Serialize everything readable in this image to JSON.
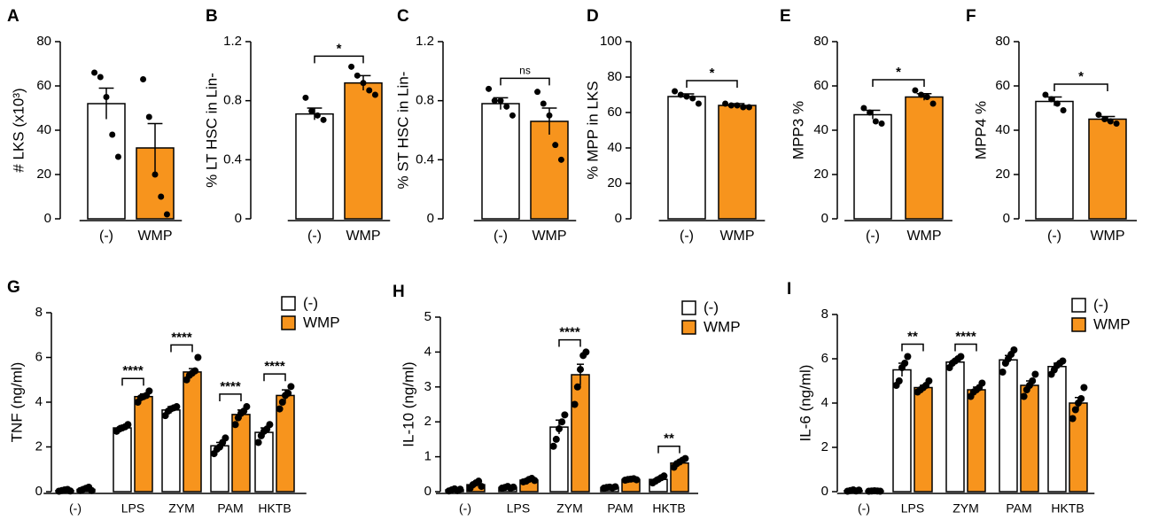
{
  "chart_data": [
    {
      "type": "bar",
      "label": "A",
      "ylabel": "# LKS (x10³)",
      "categories": [
        "(-)",
        "WMP"
      ],
      "colors": [
        "#ffffff",
        "#f7941d"
      ],
      "values": [
        52,
        32
      ],
      "errors": [
        7,
        11
      ],
      "points": [
        [
          66,
          64,
          55,
          38,
          28
        ],
        [
          63,
          46,
          20,
          10,
          2
        ]
      ],
      "ylim": [
        0,
        80
      ],
      "yticks": [
        0,
        20,
        40,
        60,
        80
      ]
    },
    {
      "type": "bar",
      "label": "B",
      "ylabel": "% LT HSC in Lin-",
      "categories": [
        "(-)",
        "WMP"
      ],
      "colors": [
        "#ffffff",
        "#f7941d"
      ],
      "values": [
        0.71,
        0.92
      ],
      "errors": [
        0.04,
        0.05
      ],
      "points": [
        [
          0.82,
          0.73,
          0.7,
          0.67
        ],
        [
          1.03,
          0.97,
          0.92,
          0.87,
          0.84
        ]
      ],
      "ylim": [
        0,
        1.2
      ],
      "yticks": [
        0,
        0.4,
        0.8,
        1.2
      ],
      "annotation": "*"
    },
    {
      "type": "bar",
      "label": "C",
      "ylabel": "% ST HSC in Lin-",
      "categories": [
        "(-)",
        "WMP"
      ],
      "colors": [
        "#ffffff",
        "#f7941d"
      ],
      "values": [
        0.78,
        0.66
      ],
      "errors": [
        0.04,
        0.09
      ],
      "points": [
        [
          0.88,
          0.8,
          0.8,
          0.76,
          0.7
        ],
        [
          0.86,
          0.78,
          0.7,
          0.5,
          0.4
        ]
      ],
      "ylim": [
        0,
        1.2
      ],
      "yticks": [
        0,
        0.4,
        0.8,
        1.2
      ],
      "annotation": "ns"
    },
    {
      "type": "bar",
      "label": "D",
      "ylabel": "% MPP in LKS",
      "categories": [
        "(-)",
        "WMP"
      ],
      "colors": [
        "#ffffff",
        "#f7941d"
      ],
      "values": [
        69,
        64
      ],
      "errors": [
        1.5,
        1
      ],
      "points": [
        [
          72,
          70,
          69,
          68,
          65
        ],
        [
          65,
          64,
          64,
          63,
          63
        ]
      ],
      "ylim": [
        0,
        100
      ],
      "yticks": [
        0,
        20,
        40,
        60,
        80,
        100
      ],
      "annotation": "*"
    },
    {
      "type": "bar",
      "label": "E",
      "ylabel": "MPP3 %",
      "categories": [
        "(-)",
        "WMP"
      ],
      "colors": [
        "#ffffff",
        "#f7941d"
      ],
      "values": [
        47,
        55
      ],
      "errors": [
        2,
        1.5
      ],
      "points": [
        [
          50,
          48,
          44,
          43
        ],
        [
          58,
          56,
          55,
          52
        ]
      ],
      "ylim": [
        0,
        80
      ],
      "yticks": [
        0,
        20,
        40,
        60,
        80
      ],
      "annotation": "*"
    },
    {
      "type": "bar",
      "label": "F",
      "ylabel": "MPP4 %",
      "categories": [
        "(-)",
        "WMP"
      ],
      "colors": [
        "#ffffff",
        "#f7941d"
      ],
      "values": [
        53,
        45
      ],
      "errors": [
        2,
        1.2
      ],
      "points": [
        [
          56,
          54,
          52,
          49
        ],
        [
          47,
          45,
          44,
          43
        ]
      ],
      "ylim": [
        0,
        80
      ],
      "yticks": [
        0,
        20,
        40,
        60,
        80
      ],
      "annotation": "*"
    },
    {
      "type": "grouped_bar",
      "label": "G",
      "ylabel": "TNF (ng/ml)",
      "categories": [
        "(-)",
        "LPS",
        "ZYM",
        "PAM",
        "HKTB"
      ],
      "ylim": [
        0,
        8
      ],
      "yticks": [
        0,
        2,
        4,
        6,
        8
      ],
      "annotations": [
        null,
        "****",
        "****",
        "****",
        "****"
      ],
      "series": [
        {
          "name": "(-)",
          "color": "#ffffff",
          "values": [
            0.05,
            2.85,
            3.65,
            2.05,
            2.65
          ],
          "errors": [
            0.02,
            0.1,
            0.15,
            0.15,
            0.2
          ],
          "points": [
            [
              0.02,
              0.05,
              0.08,
              0.1,
              0.03
            ],
            [
              2.7,
              2.8,
              2.85,
              2.9,
              3.0
            ],
            [
              3.4,
              3.6,
              3.7,
              3.75,
              3.8
            ],
            [
              1.7,
              1.9,
              2.0,
              2.2,
              2.4
            ],
            [
              2.2,
              2.5,
              2.7,
              2.8,
              3.0
            ]
          ]
        },
        {
          "name": "WMP",
          "color": "#f7941d",
          "values": [
            0.1,
            4.25,
            5.35,
            3.45,
            4.3
          ],
          "errors": [
            0.03,
            0.12,
            0.15,
            0.2,
            0.25
          ],
          "points": [
            [
              0.05,
              0.1,
              0.15,
              0.2,
              0.05
            ],
            [
              4.0,
              4.2,
              4.25,
              4.3,
              4.5
            ],
            [
              5.0,
              5.2,
              5.3,
              5.4,
              6.0
            ],
            [
              3.0,
              3.3,
              3.5,
              3.6,
              3.8
            ],
            [
              3.7,
              4.0,
              4.3,
              4.4,
              4.7
            ]
          ]
        }
      ]
    },
    {
      "type": "grouped_bar",
      "label": "H",
      "ylabel": "IL-10 (ng/ml)",
      "categories": [
        "(-)",
        "LPS",
        "ZYM",
        "PAM",
        "HKTB"
      ],
      "ylim": [
        0,
        5
      ],
      "yticks": [
        0,
        1,
        2,
        3,
        4,
        5
      ],
      "annotations": [
        null,
        null,
        "****",
        null,
        "**"
      ],
      "series": [
        {
          "name": "(-)",
          "color": "#ffffff",
          "values": [
            0.05,
            0.12,
            1.85,
            0.12,
            0.35
          ],
          "errors": [
            0.02,
            0.02,
            0.2,
            0.02,
            0.05
          ],
          "points": [
            [
              0.02,
              0.05,
              0.08,
              0.03,
              0.07
            ],
            [
              0.1,
              0.12,
              0.15,
              0.1,
              0.13
            ],
            [
              1.3,
              1.5,
              1.8,
              2.0,
              2.2
            ],
            [
              0.1,
              0.12,
              0.13,
              0.11,
              0.14
            ],
            [
              0.25,
              0.3,
              0.35,
              0.4,
              0.45
            ]
          ]
        },
        {
          "name": "WMP",
          "color": "#f7941d",
          "values": [
            0.2,
            0.33,
            3.35,
            0.35,
            0.82
          ],
          "errors": [
            0.05,
            0.04,
            0.3,
            0.02,
            0.06
          ],
          "points": [
            [
              0.1,
              0.2,
              0.25,
              0.3,
              0.15
            ],
            [
              0.28,
              0.3,
              0.35,
              0.38,
              0.32
            ],
            [
              2.5,
              3.0,
              3.5,
              3.9,
              4.0
            ],
            [
              0.33,
              0.35,
              0.36,
              0.37,
              0.34
            ],
            [
              0.7,
              0.8,
              0.85,
              0.9,
              0.95
            ]
          ]
        }
      ]
    },
    {
      "type": "grouped_bar",
      "label": "I",
      "ylabel": "IL-6 (ng/ml)",
      "categories": [
        "(-)",
        "LPS",
        "ZYM",
        "PAM",
        "HKTB"
      ],
      "ylim": [
        0,
        8
      ],
      "yticks": [
        0,
        2,
        4,
        6,
        8
      ],
      "annotations": [
        null,
        "**",
        "****",
        null,
        null
      ],
      "series": [
        {
          "name": "(-)",
          "color": "#ffffff",
          "values": [
            0.05,
            5.5,
            5.85,
            5.95,
            5.65
          ],
          "errors": [
            0.02,
            0.3,
            0.1,
            0.2,
            0.15
          ],
          "points": [
            [
              0.02,
              0.05,
              0.08,
              0.03,
              0.07
            ],
            [
              4.8,
              5.0,
              5.6,
              5.8,
              6.1
            ],
            [
              5.6,
              5.8,
              5.9,
              6.0,
              6.1
            ],
            [
              5.4,
              5.8,
              6.0,
              6.2,
              6.4
            ],
            [
              5.3,
              5.5,
              5.7,
              5.8,
              5.9
            ]
          ]
        },
        {
          "name": "WMP",
          "color": "#f7941d",
          "values": [
            0.03,
            4.7,
            4.6,
            4.8,
            4.0
          ],
          "errors": [
            0.01,
            0.1,
            0.12,
            0.2,
            0.25
          ],
          "points": [
            [
              0.02,
              0.03,
              0.04,
              0.03,
              0.02
            ],
            [
              4.5,
              4.6,
              4.7,
              4.8,
              5.0
            ],
            [
              4.3,
              4.5,
              4.6,
              4.7,
              4.9
            ],
            [
              4.3,
              4.6,
              4.8,
              5.0,
              5.3
            ],
            [
              3.3,
              3.7,
              4.0,
              4.2,
              4.7
            ]
          ]
        }
      ]
    }
  ]
}
